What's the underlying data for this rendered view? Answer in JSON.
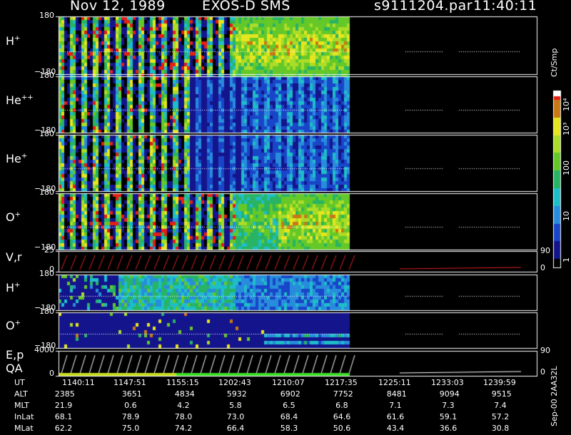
{
  "header": {
    "date": "Nov 12, 1989",
    "mission": "EXOS-D SMS",
    "file": "s9111204.par",
    "time": "11:40:11"
  },
  "panels": [
    {
      "name": "H",
      "sup": "+",
      "top_tick": "180",
      "bottom_tick": "−180",
      "style": "spectro_hot"
    },
    {
      "name": "He",
      "sup": "++",
      "top_tick": "180",
      "bottom_tick": "−180",
      "style": "spectro_cool"
    },
    {
      "name": "He",
      "sup": "+",
      "top_tick": "180",
      "bottom_tick": "−180",
      "style": "spectro_cool"
    },
    {
      "name": "O",
      "sup": "+",
      "top_tick": "180",
      "bottom_tick": "−180",
      "style": "spectro_hot"
    },
    {
      "name": "V,r",
      "sup": "",
      "top_tick": "25",
      "bottom_tick": "0",
      "right_tick": "90",
      "right_bottom": "0",
      "style": "line_red"
    },
    {
      "name": "H",
      "sup": "+",
      "top_tick": "180",
      "bottom_tick": "−180",
      "style": "spectro_mid"
    },
    {
      "name": "O",
      "sup": "+",
      "top_tick": "180",
      "bottom_tick": "−180",
      "style": "spectro_sparse"
    },
    {
      "name": "E,p",
      "name2": "QA",
      "top_tick": "4000",
      "bottom_tick": "0",
      "right_tick": "90",
      "right_bottom": "0",
      "style": "line_white"
    }
  ],
  "colorbar": {
    "unit": "Ct/Smp",
    "ticks": [
      "10⁴",
      "10³",
      "100",
      "10",
      "1"
    ]
  },
  "footer_label": "Sep-00 2AA32L",
  "chart_data": {
    "type": "heatmap",
    "title": "Nov 12, 1989   EXOS-D SMS",
    "x_ut": [
      "1140:11",
      "1147:51",
      "1155:15",
      "1202:43",
      "1210:07",
      "1217:35",
      "1225:11",
      "1233:03",
      "1239:59"
    ],
    "ephemeris": [
      {
        "name": "UT",
        "values": [
          "1140:11",
          "1147:51",
          "1155:15",
          "1202:43",
          "1210:07",
          "1217:35",
          "1225:11",
          "1233:03",
          "1239:59"
        ]
      },
      {
        "name": "ALT",
        "values": [
          "2385",
          "3651",
          "4834",
          "5932",
          "6902",
          "7752",
          "8481",
          "9094",
          "9515"
        ]
      },
      {
        "name": "MLT",
        "values": [
          "21.9",
          "0.6",
          "4.2",
          "5.8",
          "6.5",
          "6.8",
          "7.1",
          "7.3",
          "7.4"
        ]
      },
      {
        "name": "InLat",
        "values": [
          "68.1",
          "78.9",
          "78.0",
          "73.0",
          "68.4",
          "64.6",
          "61.6",
          "59.1",
          "57.2"
        ]
      },
      {
        "name": "MLat",
        "values": [
          "62.2",
          "75.0",
          "74.2",
          "66.4",
          "58.3",
          "50.6",
          "43.4",
          "36.6",
          "30.8"
        ]
      }
    ],
    "y_range_angle": [
      -180,
      180
    ],
    "color_scale": "log",
    "color_range": [
      1,
      10000
    ]
  }
}
